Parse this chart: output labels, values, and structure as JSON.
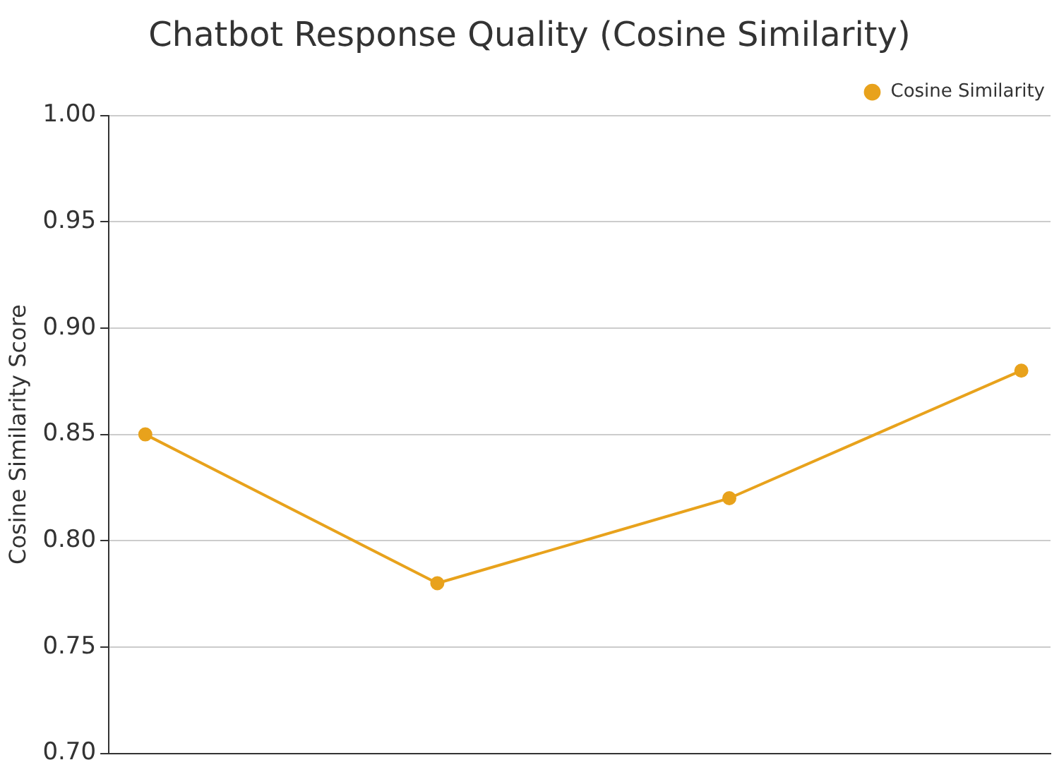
{
  "chart_data": {
    "type": "line",
    "title": "Chatbot Response Quality (Cosine Similarity)",
    "ylabel": "Cosine Similarity Score",
    "categories": [
      null,
      null,
      null,
      null
    ],
    "series": [
      {
        "name": "Cosine Similarity",
        "color": "#e8a21c",
        "values": [
          0.85,
          0.78,
          0.82,
          0.88
        ]
      }
    ],
    "ylim": [
      0.7,
      1.0
    ],
    "yticks": [
      {
        "value": 0.7,
        "label": "0.70"
      },
      {
        "value": 0.75,
        "label": "0.75"
      },
      {
        "value": 0.8,
        "label": "0.80"
      },
      {
        "value": 0.85,
        "label": "0.85"
      },
      {
        "value": 0.9,
        "label": "0.90"
      },
      {
        "value": 0.95,
        "label": "0.95"
      },
      {
        "value": 1.0,
        "label": "1.00"
      }
    ],
    "grid": "y",
    "legend": "top right",
    "marker": "circle",
    "line_style": "solid",
    "tick_labels": "y"
  }
}
